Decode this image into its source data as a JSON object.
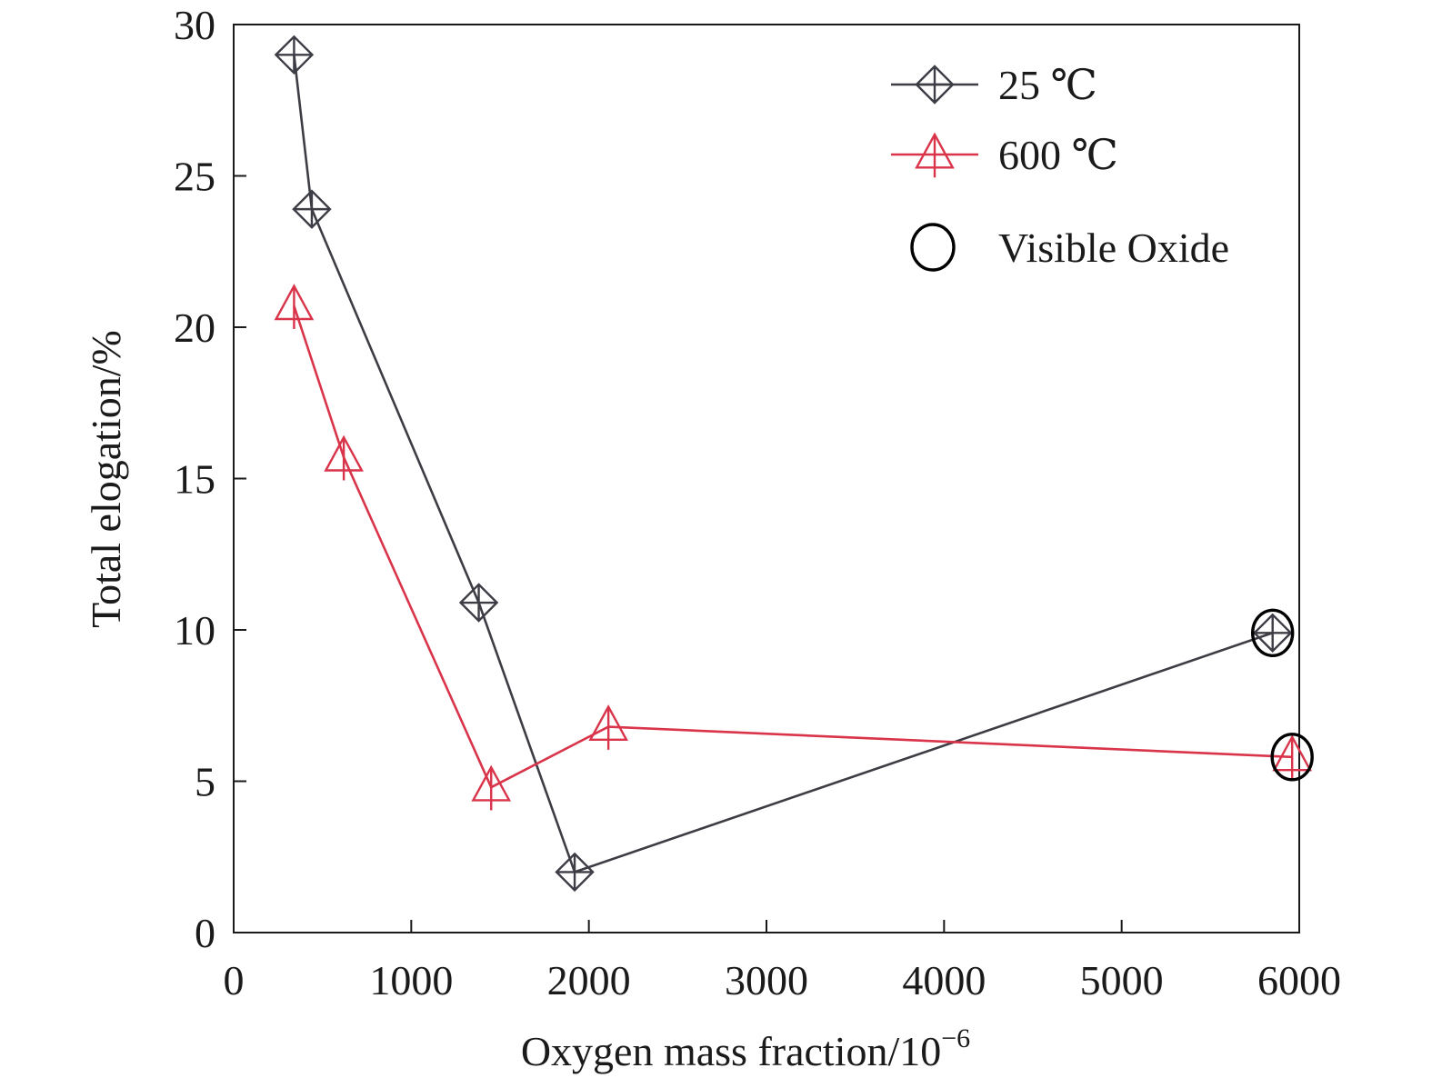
{
  "chart_data": {
    "type": "line",
    "xlabel": "Oxygen mass fraction/10",
    "xlabel_superscript": "−6",
    "ylabel": "Total elogation/%",
    "xlim": [
      0,
      6000
    ],
    "ylim": [
      0,
      30
    ],
    "xticks": [
      0,
      1000,
      2000,
      3000,
      4000,
      5000,
      6000
    ],
    "yticks": [
      0,
      5,
      10,
      15,
      20,
      25,
      30
    ],
    "grid": false,
    "legend_position": "top-right",
    "series": [
      {
        "name": "25 ℃",
        "color": "#3d3d45",
        "marker": "diamond-cross",
        "x": [
          340,
          440,
          1380,
          1920,
          5850
        ],
        "y": [
          29.0,
          23.9,
          10.9,
          2.0,
          9.9
        ],
        "visible_oxide": [
          false,
          false,
          false,
          false,
          true
        ]
      },
      {
        "name": "600 ℃",
        "color": "#d9344a",
        "marker": "triangle-line",
        "x": [
          340,
          620,
          1450,
          2110,
          5960
        ],
        "y": [
          20.7,
          15.7,
          4.8,
          6.8,
          5.8
        ],
        "visible_oxide": [
          false,
          false,
          false,
          false,
          true
        ]
      }
    ],
    "legend": [
      {
        "label": "25 ℃",
        "marker": "diamond-cross",
        "color": "#3d3d45"
      },
      {
        "label": "600 ℃",
        "marker": "triangle-line",
        "color": "#d9344a"
      },
      {
        "label": "Visible Oxide",
        "marker": "circle",
        "color": "#000000"
      }
    ]
  }
}
